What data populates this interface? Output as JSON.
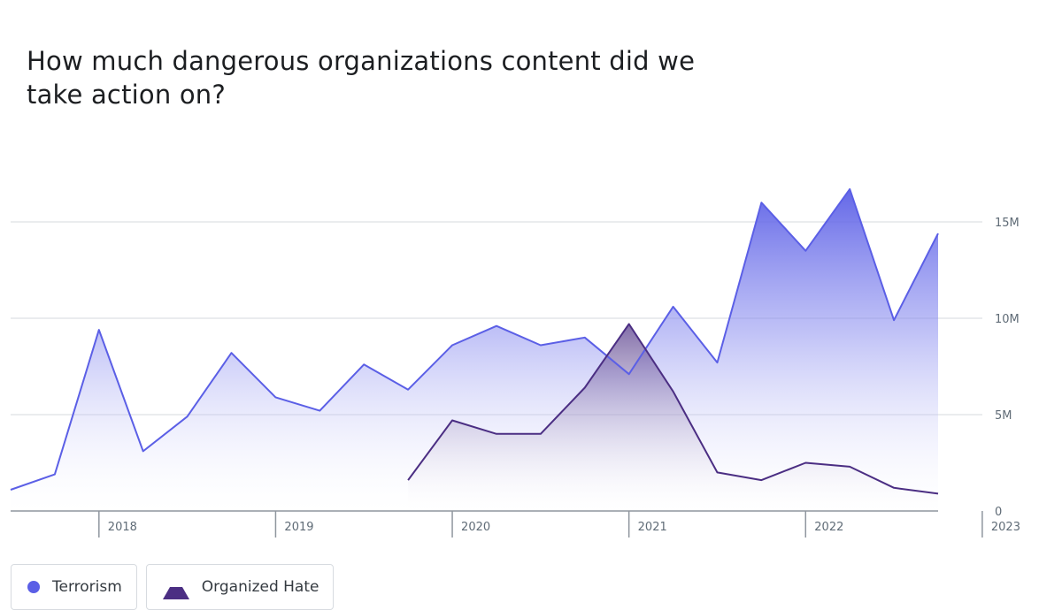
{
  "title": "How much dangerous organizations content did we take action on?",
  "legend": {
    "terrorism": "Terrorism",
    "organized_hate": "Organized Hate"
  },
  "colors": {
    "terrorism": "#5b5fe6",
    "organized_hate": "#4b2e83",
    "grid": "#e3e5e8",
    "axis": "#8f969e"
  },
  "chart_data": {
    "type": "area",
    "title": "How much dangerous organizations content did we take action on?",
    "x_tick_labels": [
      "2018",
      "2019",
      "2020",
      "2021",
      "2022",
      "2023"
    ],
    "y_tick_labels": [
      "0",
      "5M",
      "10M",
      "15M"
    ],
    "y_ticks": [
      0,
      5000000,
      10000000,
      15000000
    ],
    "ylim": [
      0,
      17000000
    ],
    "x_range": [
      "2017 Q3",
      "2022 Q4"
    ],
    "grid": true,
    "legend_position": "bottom-left",
    "series": [
      {
        "name": "Terrorism",
        "marker": "circle",
        "x": [
          "2017 Q3",
          "2017 Q4",
          "2018 Q1",
          "2018 Q2",
          "2018 Q3",
          "2018 Q4",
          "2019 Q1",
          "2019 Q2",
          "2019 Q3",
          "2019 Q4",
          "2020 Q1",
          "2020 Q2",
          "2020 Q3",
          "2020 Q4",
          "2021 Q1",
          "2021 Q2",
          "2021 Q3",
          "2021 Q4",
          "2022 Q1",
          "2022 Q2",
          "2022 Q3",
          "2022 Q4"
        ],
        "values": [
          1100000,
          1900000,
          9400000,
          3100000,
          4900000,
          8200000,
          5900000,
          5200000,
          7600000,
          6300000,
          8600000,
          9600000,
          8600000,
          9000000,
          7100000,
          10600000,
          7700000,
          16000000,
          13500000,
          16700000,
          9900000,
          14400000
        ]
      },
      {
        "name": "Organized Hate",
        "marker": "triangle",
        "x": [
          "2019 Q4",
          "2020 Q1",
          "2020 Q2",
          "2020 Q3",
          "2020 Q4",
          "2021 Q1",
          "2021 Q2",
          "2021 Q3",
          "2021 Q4",
          "2022 Q1",
          "2022 Q2",
          "2022 Q3",
          "2022 Q4"
        ],
        "values": [
          1600000,
          4700000,
          4000000,
          4000000,
          6400000,
          9700000,
          6200000,
          2000000,
          1600000,
          2500000,
          2300000,
          1200000,
          900000
        ]
      }
    ]
  }
}
